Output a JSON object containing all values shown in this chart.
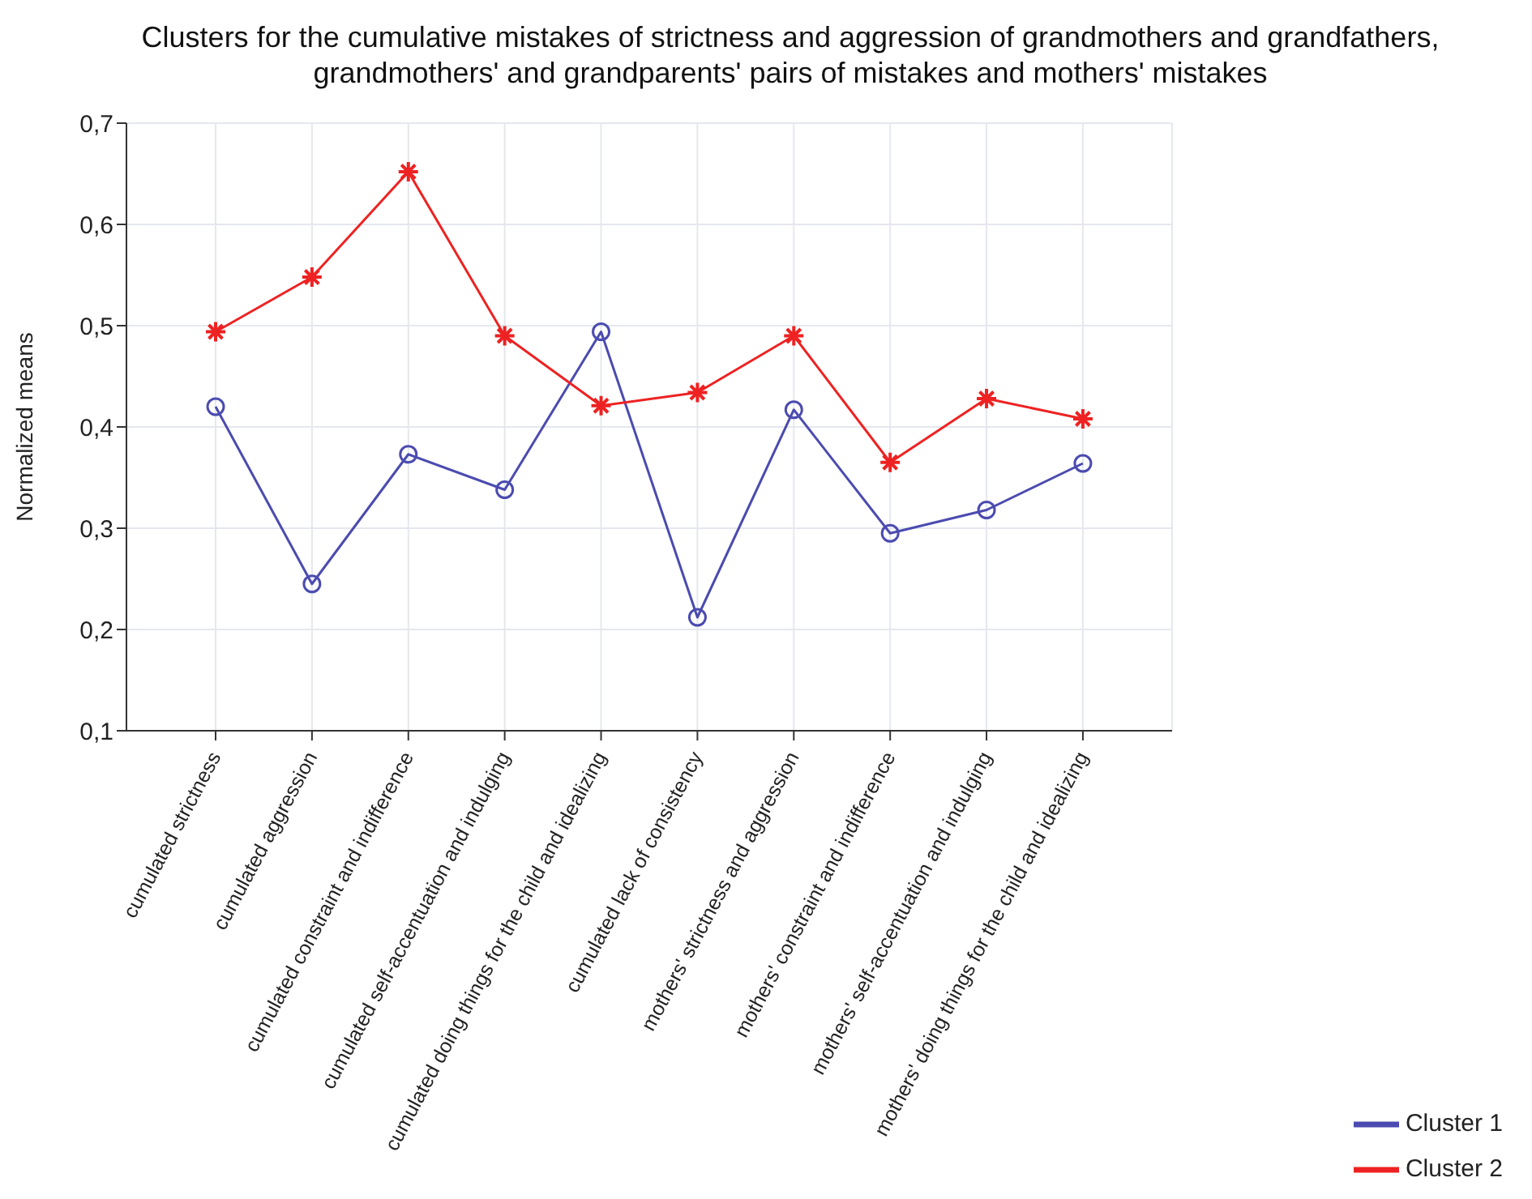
{
  "chart_data": {
    "type": "line",
    "title": "Clusters for the cumulative mistakes of strictness and aggression of grandmothers and grandfathers, grandmothers' and grandparents' pairs of mistakes and mothers' mistakes",
    "ylabel": "Normalized means",
    "categories": [
      "cumulated strictness",
      "cumulated aggression",
      "cumulated constraint and indifference",
      "cumulated self-accentuation and indulging",
      "cumulated doing things for the child and idealizing",
      "cumulated lack of consistency",
      "mothers' strictness and aggression",
      "mothers' constraint and indifference",
      "mothers' self-accentuation and indulging",
      "mothers' doing things for the child and idealizing"
    ],
    "series": [
      {
        "name": "Cluster 1",
        "color": "#4b4bb0",
        "marker": "circle",
        "values": [
          0.42,
          0.245,
          0.373,
          0.338,
          0.494,
          0.212,
          0.417,
          0.295,
          0.318,
          0.364
        ]
      },
      {
        "name": "Cluster 2",
        "color": "#ee2222",
        "marker": "cross",
        "values": [
          0.494,
          0.548,
          0.652,
          0.49,
          0.421,
          0.434,
          0.49,
          0.365,
          0.428,
          0.408
        ]
      }
    ],
    "ylim": [
      0.1,
      0.7
    ],
    "yticks": [
      {
        "value": 0.1,
        "label": "0,1"
      },
      {
        "value": 0.2,
        "label": "0,2"
      },
      {
        "value": 0.3,
        "label": "0,3"
      },
      {
        "value": 0.4,
        "label": "0,4"
      },
      {
        "value": 0.5,
        "label": "0,5"
      },
      {
        "value": 0.6,
        "label": "0,6"
      },
      {
        "value": 0.7,
        "label": "0,7"
      }
    ],
    "grid": true,
    "legend": "bottom right",
    "line_style": "solid"
  }
}
